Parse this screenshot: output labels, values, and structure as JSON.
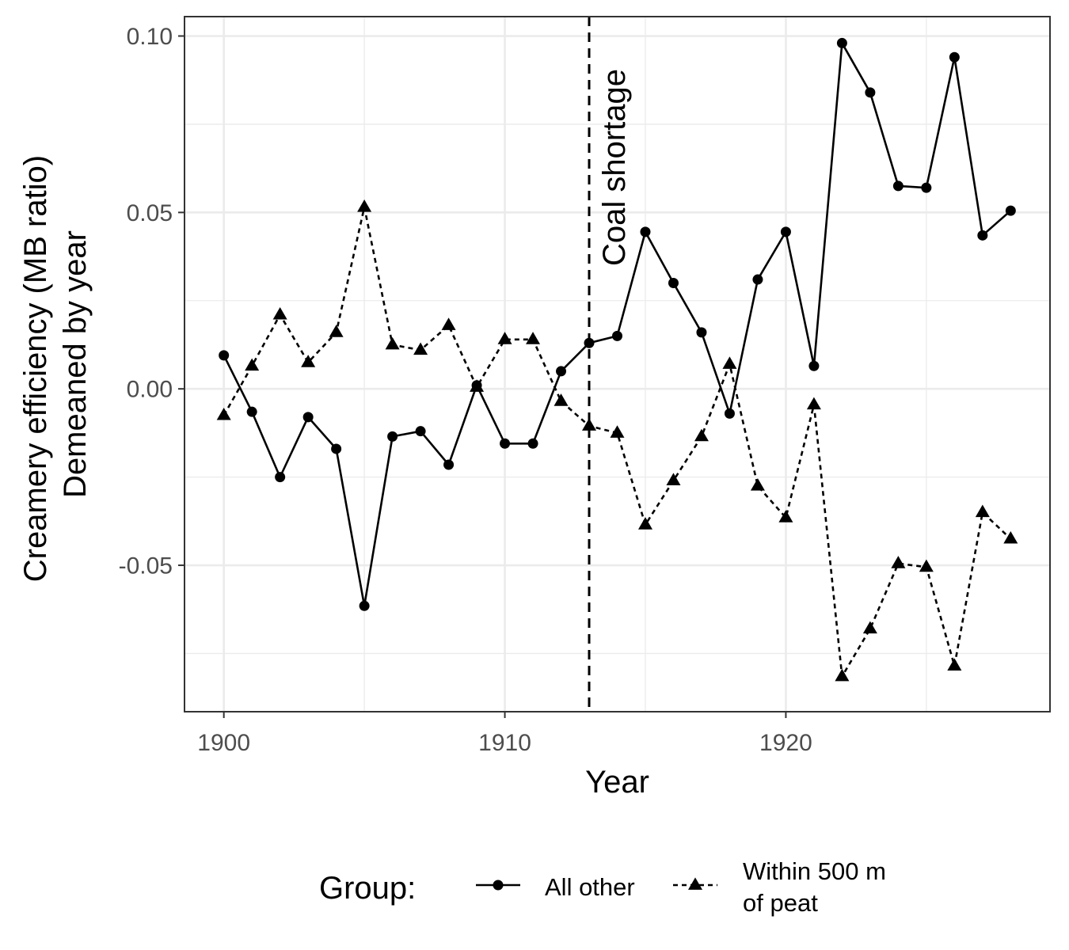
{
  "chart_data": {
    "type": "line",
    "xlabel": "Year",
    "ylabel": [
      "Creamery efficiency (MB ratio)",
      "Demeaned by year"
    ],
    "xlim": [
      1898.6,
      1929.4
    ],
    "ylim": [
      -0.0915,
      0.1055
    ],
    "x_ticks": [
      1900,
      1910,
      1920
    ],
    "x_tick_labels": [
      "1900",
      "1910",
      "1920"
    ],
    "y_ticks": [
      -0.05,
      0,
      0.05,
      0.1
    ],
    "y_tick_labels": [
      "-0.05",
      "0.00",
      "0.05",
      "0.10"
    ],
    "grid": true,
    "legend": {
      "title": "Group:",
      "position": "bottom",
      "entries": [
        {
          "label_lines": [
            "All other"
          ],
          "linestyle": "solid",
          "marker": "circle"
        },
        {
          "label_lines": [
            "Within 500 m",
            "of peat"
          ],
          "linestyle": "dashed",
          "marker": "triangle"
        }
      ]
    },
    "annotations": [
      {
        "type": "vline",
        "x": 1913,
        "linestyle": "dashed",
        "label": "Coal shortage"
      }
    ],
    "x": [
      1900,
      1901,
      1902,
      1903,
      1904,
      1905,
      1906,
      1907,
      1908,
      1909,
      1910,
      1911,
      1912,
      1913,
      1914,
      1915,
      1916,
      1917,
      1918,
      1919,
      1920,
      1921,
      1922,
      1923,
      1924,
      1925,
      1926,
      1927,
      1928
    ],
    "series": [
      {
        "name": "All other",
        "linestyle": "solid",
        "marker": "circle",
        "values": [
          0.0095,
          -0.0065,
          -0.025,
          -0.008,
          -0.017,
          -0.0615,
          -0.0135,
          -0.012,
          -0.0215,
          0.001,
          -0.0155,
          -0.0155,
          0.005,
          0.013,
          0.015,
          0.0445,
          0.03,
          0.016,
          -0.007,
          0.031,
          0.0445,
          0.0065,
          0.098,
          0.084,
          0.0575,
          0.057,
          0.094,
          0.0435,
          0.0505
        ]
      },
      {
        "name": "Within 500 m of peat",
        "linestyle": "dashed",
        "marker": "triangle",
        "values": [
          -0.0075,
          0.0065,
          0.021,
          0.0075,
          0.016,
          0.0515,
          0.0125,
          0.011,
          0.018,
          0.0005,
          0.014,
          0.014,
          -0.0035,
          -0.0105,
          -0.0125,
          -0.0385,
          -0.026,
          -0.0135,
          0.007,
          -0.0275,
          -0.0365,
          -0.0045,
          -0.0815,
          -0.068,
          -0.0495,
          -0.0505,
          -0.0785,
          -0.035,
          -0.0425
        ]
      }
    ]
  }
}
